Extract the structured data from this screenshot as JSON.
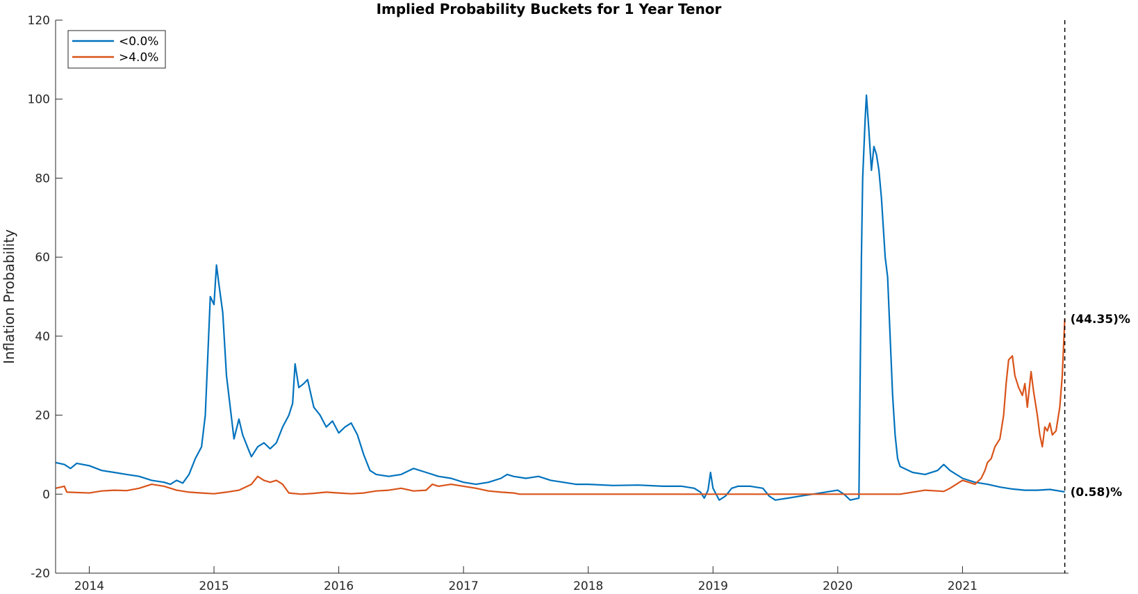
{
  "chart_data": {
    "type": "line",
    "title": "Implied Probability Buckets for 1 Year Tenor",
    "ylabel": "Inflation Probability",
    "xlabel": "",
    "xlim": [
      2013.73,
      2021.85
    ],
    "ylim": [
      -20,
      120
    ],
    "yticks": [
      -20,
      0,
      20,
      40,
      60,
      80,
      100,
      120
    ],
    "xticks": [
      2014,
      2015,
      2016,
      2017,
      2018,
      2019,
      2020,
      2021
    ],
    "grid": false,
    "legend_position": "top-left",
    "end_marker_x": 2021.82,
    "series": [
      {
        "name": "<0.0%",
        "color": "#0072BD",
        "end_label": "(0.58)%",
        "points": [
          [
            2013.73,
            8.0
          ],
          [
            2013.8,
            7.5
          ],
          [
            2013.85,
            6.5
          ],
          [
            2013.9,
            7.8
          ],
          [
            2014.0,
            7.2
          ],
          [
            2014.1,
            6.0
          ],
          [
            2014.2,
            5.5
          ],
          [
            2014.3,
            5.0
          ],
          [
            2014.4,
            4.5
          ],
          [
            2014.5,
            3.5
          ],
          [
            2014.6,
            3.0
          ],
          [
            2014.65,
            2.5
          ],
          [
            2014.7,
            3.5
          ],
          [
            2014.75,
            2.8
          ],
          [
            2014.8,
            5.0
          ],
          [
            2014.85,
            9.0
          ],
          [
            2014.9,
            12.0
          ],
          [
            2014.93,
            20.0
          ],
          [
            2014.95,
            35.0
          ],
          [
            2014.97,
            50.0
          ],
          [
            2015.0,
            48.0
          ],
          [
            2015.02,
            58.0
          ],
          [
            2015.04,
            53.0
          ],
          [
            2015.07,
            46.0
          ],
          [
            2015.1,
            30.0
          ],
          [
            2015.13,
            22.0
          ],
          [
            2015.16,
            14.0
          ],
          [
            2015.2,
            19.0
          ],
          [
            2015.23,
            15.0
          ],
          [
            2015.28,
            11.0
          ],
          [
            2015.3,
            9.5
          ],
          [
            2015.35,
            12.0
          ],
          [
            2015.4,
            13.0
          ],
          [
            2015.45,
            11.5
          ],
          [
            2015.5,
            13.0
          ],
          [
            2015.55,
            17.0
          ],
          [
            2015.6,
            20.0
          ],
          [
            2015.63,
            23.0
          ],
          [
            2015.65,
            33.0
          ],
          [
            2015.68,
            27.0
          ],
          [
            2015.72,
            28.0
          ],
          [
            2015.75,
            29.0
          ],
          [
            2015.8,
            22.0
          ],
          [
            2015.85,
            20.0
          ],
          [
            2015.9,
            17.0
          ],
          [
            2015.95,
            18.5
          ],
          [
            2016.0,
            15.5
          ],
          [
            2016.05,
            17.0
          ],
          [
            2016.1,
            18.0
          ],
          [
            2016.15,
            15.0
          ],
          [
            2016.2,
            10.0
          ],
          [
            2016.25,
            6.0
          ],
          [
            2016.3,
            5.0
          ],
          [
            2016.4,
            4.5
          ],
          [
            2016.5,
            5.0
          ],
          [
            2016.6,
            6.5
          ],
          [
            2016.7,
            5.5
          ],
          [
            2016.8,
            4.5
          ],
          [
            2016.9,
            4.0
          ],
          [
            2017.0,
            3.0
          ],
          [
            2017.1,
            2.5
          ],
          [
            2017.2,
            3.0
          ],
          [
            2017.3,
            4.0
          ],
          [
            2017.35,
            5.0
          ],
          [
            2017.4,
            4.5
          ],
          [
            2017.5,
            4.0
          ],
          [
            2017.6,
            4.5
          ],
          [
            2017.7,
            3.5
          ],
          [
            2017.8,
            3.0
          ],
          [
            2017.9,
            2.5
          ],
          [
            2018.0,
            2.5
          ],
          [
            2018.2,
            2.2
          ],
          [
            2018.4,
            2.3
          ],
          [
            2018.6,
            2.0
          ],
          [
            2018.75,
            2.0
          ],
          [
            2018.85,
            1.5
          ],
          [
            2018.9,
            0.5
          ],
          [
            2018.93,
            -1.0
          ],
          [
            2018.96,
            1.0
          ],
          [
            2018.98,
            5.5
          ],
          [
            2019.0,
            1.5
          ],
          [
            2019.05,
            -1.5
          ],
          [
            2019.1,
            -0.5
          ],
          [
            2019.15,
            1.5
          ],
          [
            2019.2,
            2.0
          ],
          [
            2019.3,
            2.0
          ],
          [
            2019.4,
            1.5
          ],
          [
            2019.45,
            -0.5
          ],
          [
            2019.5,
            -1.5
          ],
          [
            2019.6,
            -1.0
          ],
          [
            2019.7,
            -0.5
          ],
          [
            2019.8,
            0.0
          ],
          [
            2019.9,
            0.5
          ],
          [
            2020.0,
            1.0
          ],
          [
            2020.05,
            0.0
          ],
          [
            2020.1,
            -1.5
          ],
          [
            2020.17,
            -1.0
          ],
          [
            2020.18,
            30.0
          ],
          [
            2020.19,
            60.0
          ],
          [
            2020.2,
            80.0
          ],
          [
            2020.22,
            95.0
          ],
          [
            2020.23,
            101.0
          ],
          [
            2020.25,
            92.0
          ],
          [
            2020.27,
            82.0
          ],
          [
            2020.29,
            88.0
          ],
          [
            2020.31,
            86.0
          ],
          [
            2020.33,
            82.0
          ],
          [
            2020.35,
            75.0
          ],
          [
            2020.38,
            60.0
          ],
          [
            2020.4,
            55.0
          ],
          [
            2020.42,
            40.0
          ],
          [
            2020.44,
            25.0
          ],
          [
            2020.46,
            15.0
          ],
          [
            2020.48,
            9.0
          ],
          [
            2020.5,
            7.0
          ],
          [
            2020.6,
            5.5
          ],
          [
            2020.7,
            5.0
          ],
          [
            2020.8,
            6.0
          ],
          [
            2020.85,
            7.5
          ],
          [
            2020.9,
            6.0
          ],
          [
            2021.0,
            4.0
          ],
          [
            2021.1,
            3.0
          ],
          [
            2021.2,
            2.5
          ],
          [
            2021.3,
            1.8
          ],
          [
            2021.4,
            1.3
          ],
          [
            2021.5,
            1.0
          ],
          [
            2021.6,
            1.0
          ],
          [
            2021.7,
            1.2
          ],
          [
            2021.82,
            0.58
          ]
        ]
      },
      {
        "name": ">4.0%",
        "color": "#D95319",
        "end_label": "(44.35)%",
        "points": [
          [
            2013.73,
            1.5
          ],
          [
            2013.8,
            2.0
          ],
          [
            2013.82,
            0.5
          ],
          [
            2014.0,
            0.3
          ],
          [
            2014.1,
            0.8
          ],
          [
            2014.2,
            1.0
          ],
          [
            2014.3,
            0.9
          ],
          [
            2014.4,
            1.5
          ],
          [
            2014.5,
            2.5
          ],
          [
            2014.6,
            2.0
          ],
          [
            2014.7,
            1.0
          ],
          [
            2014.8,
            0.5
          ],
          [
            2014.9,
            0.3
          ],
          [
            2015.0,
            0.1
          ],
          [
            2015.1,
            0.5
          ],
          [
            2015.2,
            1.0
          ],
          [
            2015.3,
            2.5
          ],
          [
            2015.35,
            4.5
          ],
          [
            2015.4,
            3.5
          ],
          [
            2015.45,
            3.0
          ],
          [
            2015.5,
            3.5
          ],
          [
            2015.55,
            2.5
          ],
          [
            2015.6,
            0.3
          ],
          [
            2015.7,
            0.0
          ],
          [
            2015.8,
            0.2
          ],
          [
            2015.9,
            0.5
          ],
          [
            2016.0,
            0.3
          ],
          [
            2016.1,
            0.1
          ],
          [
            2016.2,
            0.3
          ],
          [
            2016.3,
            0.8
          ],
          [
            2016.4,
            1.0
          ],
          [
            2016.5,
            1.5
          ],
          [
            2016.6,
            0.8
          ],
          [
            2016.7,
            1.0
          ],
          [
            2016.75,
            2.5
          ],
          [
            2016.8,
            2.0
          ],
          [
            2016.9,
            2.5
          ],
          [
            2017.0,
            2.0
          ],
          [
            2017.1,
            1.5
          ],
          [
            2017.2,
            0.8
          ],
          [
            2017.3,
            0.5
          ],
          [
            2017.4,
            0.3
          ],
          [
            2017.45,
            0.0
          ],
          [
            2020.5,
            0.0
          ],
          [
            2020.6,
            0.5
          ],
          [
            2020.7,
            1.0
          ],
          [
            2020.8,
            0.8
          ],
          [
            2020.85,
            0.7
          ],
          [
            2020.9,
            1.5
          ],
          [
            2020.95,
            2.5
          ],
          [
            2021.0,
            3.5
          ],
          [
            2021.05,
            3.0
          ],
          [
            2021.1,
            2.5
          ],
          [
            2021.15,
            4.0
          ],
          [
            2021.18,
            6.0
          ],
          [
            2021.2,
            8.0
          ],
          [
            2021.23,
            9.0
          ],
          [
            2021.26,
            12.0
          ],
          [
            2021.3,
            14.0
          ],
          [
            2021.33,
            20.0
          ],
          [
            2021.35,
            28.0
          ],
          [
            2021.37,
            34.0
          ],
          [
            2021.4,
            35.0
          ],
          [
            2021.42,
            30.0
          ],
          [
            2021.45,
            27.0
          ],
          [
            2021.48,
            25.0
          ],
          [
            2021.5,
            28.0
          ],
          [
            2021.52,
            22.0
          ],
          [
            2021.55,
            31.0
          ],
          [
            2021.57,
            26.0
          ],
          [
            2021.6,
            20.0
          ],
          [
            2021.62,
            15.0
          ],
          [
            2021.64,
            12.0
          ],
          [
            2021.66,
            17.0
          ],
          [
            2021.68,
            16.0
          ],
          [
            2021.7,
            18.0
          ],
          [
            2021.72,
            15.0
          ],
          [
            2021.75,
            16.0
          ],
          [
            2021.78,
            22.0
          ],
          [
            2021.8,
            30.0
          ],
          [
            2021.82,
            44.35
          ]
        ]
      }
    ]
  }
}
